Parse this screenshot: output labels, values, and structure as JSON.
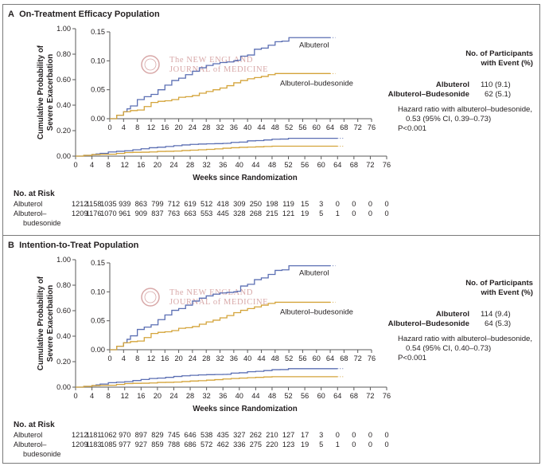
{
  "colors": {
    "albuterol": "#5b6fb3",
    "budesonide": "#d4a43a",
    "axis": "#5a5a5a",
    "watermark": "#d8a8a8"
  },
  "watermark": {
    "line1_prefix": "The",
    "line1": "NEW ENGLAND",
    "line2a": "JOURNAL",
    "line2b": "of",
    "line2c": "MEDICINE"
  },
  "chart_data": [
    {
      "type": "line",
      "panel": "A",
      "title": "On-Treatment Efficacy Population",
      "xlabel": "Weeks since Randomization",
      "ylabel": [
        "Cumulative Probability of",
        "Severe Exacerbation"
      ],
      "xlim": [
        0,
        76
      ],
      "ylim": [
        0,
        1.0
      ],
      "xticks": [
        0,
        4,
        8,
        12,
        16,
        20,
        24,
        28,
        32,
        36,
        40,
        44,
        48,
        52,
        56,
        60,
        64,
        68,
        72,
        76
      ],
      "yticks": [
        "0.00",
        "0.20",
        "0.40",
        "0.60",
        "0.80",
        "1.00"
      ],
      "inset": {
        "ylim": [
          0,
          0.15
        ],
        "yticks": [
          "0.00",
          "0.05",
          "0.10",
          "0.15"
        ],
        "xticks": [
          0,
          4,
          8,
          12,
          16,
          20,
          24,
          28,
          32,
          36,
          40,
          44,
          48,
          52,
          56,
          60,
          64,
          68,
          72,
          76
        ]
      },
      "series": [
        {
          "name": "Albuterol",
          "x": [
            0,
            2,
            4,
            5,
            6,
            8,
            10,
            12,
            14,
            16,
            18,
            20,
            22,
            24,
            26,
            28,
            30,
            32,
            34,
            36,
            37,
            38,
            40,
            42,
            44,
            46,
            48,
            50,
            52,
            54,
            56,
            58,
            60,
            62,
            64
          ],
          "y": [
            0,
            0.006,
            0.012,
            0.017,
            0.022,
            0.033,
            0.038,
            0.042,
            0.05,
            0.058,
            0.066,
            0.07,
            0.076,
            0.082,
            0.088,
            0.092,
            0.095,
            0.097,
            0.098,
            0.1,
            0.101,
            0.108,
            0.11,
            0.12,
            0.122,
            0.127,
            0.133,
            0.134,
            0.14,
            0.14,
            0.14,
            0.14,
            0.14,
            0.14,
            0.14
          ],
          "label": "Albuterol"
        },
        {
          "name": "Albuterol–budesonide",
          "x": [
            0,
            2,
            4,
            6,
            8,
            10,
            12,
            14,
            16,
            18,
            20,
            22,
            24,
            26,
            28,
            30,
            32,
            34,
            36,
            38,
            40,
            42,
            44,
            46,
            48,
            52,
            56,
            60,
            64
          ],
          "y": [
            0,
            0.006,
            0.012,
            0.014,
            0.015,
            0.021,
            0.028,
            0.03,
            0.031,
            0.033,
            0.037,
            0.038,
            0.04,
            0.044,
            0.047,
            0.05,
            0.053,
            0.057,
            0.062,
            0.066,
            0.069,
            0.071,
            0.073,
            0.076,
            0.078,
            0.078,
            0.078,
            0.078,
            0.078
          ],
          "label": "Albuterol–budesonide"
        }
      ],
      "events_header": [
        "No. of Participants",
        "with Event (%)"
      ],
      "events": [
        {
          "group": "Albuterol",
          "value": "110 (9.1)"
        },
        {
          "group": "Albuterol–Budesonide",
          "value": "62 (5.1)"
        }
      ],
      "hazard": [
        "Hazard ratio with albuterol–budesonide,",
        "0.53 (95% CI, 0.39–0.73)",
        "P<0.001"
      ],
      "risk_title": "No. at Risk",
      "risk": [
        {
          "label": [
            "Albuterol"
          ],
          "values": [
            "1212",
            "1158",
            "1035",
            "939",
            "863",
            "799",
            "712",
            "619",
            "512",
            "418",
            "309",
            "250",
            "198",
            "119",
            "15",
            "3",
            "0",
            "0",
            "0",
            "0"
          ]
        },
        {
          "label": [
            "Albuterol–",
            "budesonide"
          ],
          "values": [
            "1209",
            "1176",
            "1070",
            "961",
            "909",
            "837",
            "763",
            "663",
            "553",
            "445",
            "328",
            "268",
            "215",
            "121",
            "19",
            "5",
            "1",
            "0",
            "0",
            "0"
          ]
        }
      ]
    },
    {
      "type": "line",
      "panel": "B",
      "title": "Intention-to-Treat Population",
      "xlabel": "Weeks since Randomization",
      "ylabel": [
        "Cumulative Probability of",
        "Severe Exacerbation"
      ],
      "xlim": [
        0,
        76
      ],
      "ylim": [
        0,
        1.0
      ],
      "xticks": [
        0,
        4,
        8,
        12,
        16,
        20,
        24,
        28,
        32,
        36,
        40,
        44,
        48,
        52,
        56,
        60,
        64,
        68,
        72,
        76
      ],
      "yticks": [
        "0.00",
        "0.20",
        "0.40",
        "0.60",
        "0.80",
        "1.00"
      ],
      "inset": {
        "ylim": [
          0,
          0.15
        ],
        "yticks": [
          "0.00",
          "0.05",
          "0.10",
          "0.15"
        ],
        "xticks": [
          0,
          4,
          8,
          12,
          16,
          20,
          24,
          28,
          32,
          36,
          40,
          44,
          48,
          52,
          56,
          60,
          64,
          68,
          72,
          76
        ]
      },
      "series": [
        {
          "name": "Albuterol",
          "x": [
            0,
            2,
            4,
            5,
            6,
            8,
            10,
            12,
            14,
            16,
            18,
            20,
            22,
            24,
            26,
            28,
            30,
            32,
            34,
            36,
            37,
            38,
            40,
            42,
            44,
            46,
            48,
            50,
            52,
            54,
            56,
            58,
            60,
            62,
            64
          ],
          "y": [
            0,
            0.006,
            0.012,
            0.018,
            0.024,
            0.035,
            0.039,
            0.043,
            0.052,
            0.06,
            0.068,
            0.071,
            0.077,
            0.084,
            0.089,
            0.093,
            0.096,
            0.098,
            0.099,
            0.1,
            0.101,
            0.11,
            0.113,
            0.121,
            0.124,
            0.13,
            0.137,
            0.138,
            0.145,
            0.145,
            0.145,
            0.145,
            0.145,
            0.145,
            0.145
          ],
          "label": "Albuterol"
        },
        {
          "name": "Albuterol–budesonide",
          "x": [
            0,
            2,
            4,
            6,
            8,
            10,
            12,
            14,
            16,
            18,
            20,
            22,
            24,
            26,
            28,
            30,
            32,
            34,
            36,
            38,
            40,
            42,
            44,
            46,
            48,
            52,
            56,
            60,
            64
          ],
          "y": [
            0,
            0.006,
            0.012,
            0.014,
            0.015,
            0.021,
            0.028,
            0.03,
            0.031,
            0.033,
            0.037,
            0.038,
            0.04,
            0.044,
            0.048,
            0.051,
            0.055,
            0.059,
            0.064,
            0.068,
            0.071,
            0.074,
            0.077,
            0.08,
            0.082,
            0.082,
            0.082,
            0.082,
            0.082
          ],
          "label": "Albuterol–budesonide"
        }
      ],
      "events_header": [
        "No. of Participants",
        "with Event (%)"
      ],
      "events": [
        {
          "group": "Albuterol",
          "value": "114 (9.4)"
        },
        {
          "group": "Albuterol–Budesonide",
          "value": "64 (5.3)"
        }
      ],
      "hazard": [
        "Hazard ratio with albuterol–budesonide,",
        "0.54 (95% CI, 0.40–0.73)",
        "P<0.001"
      ],
      "risk_title": "No. at Risk",
      "risk": [
        {
          "label": [
            "Albuterol"
          ],
          "values": [
            "1212",
            "1181",
            "1062",
            "970",
            "897",
            "829",
            "745",
            "646",
            "538",
            "435",
            "327",
            "262",
            "210",
            "127",
            "17",
            "3",
            "0",
            "0",
            "0",
            "0"
          ]
        },
        {
          "label": [
            "Albuterol–",
            "budesonide"
          ],
          "values": [
            "1209",
            "1183",
            "1085",
            "977",
            "927",
            "859",
            "788",
            "686",
            "572",
            "462",
            "336",
            "275",
            "220",
            "123",
            "19",
            "5",
            "1",
            "0",
            "0",
            "0"
          ]
        }
      ]
    }
  ]
}
